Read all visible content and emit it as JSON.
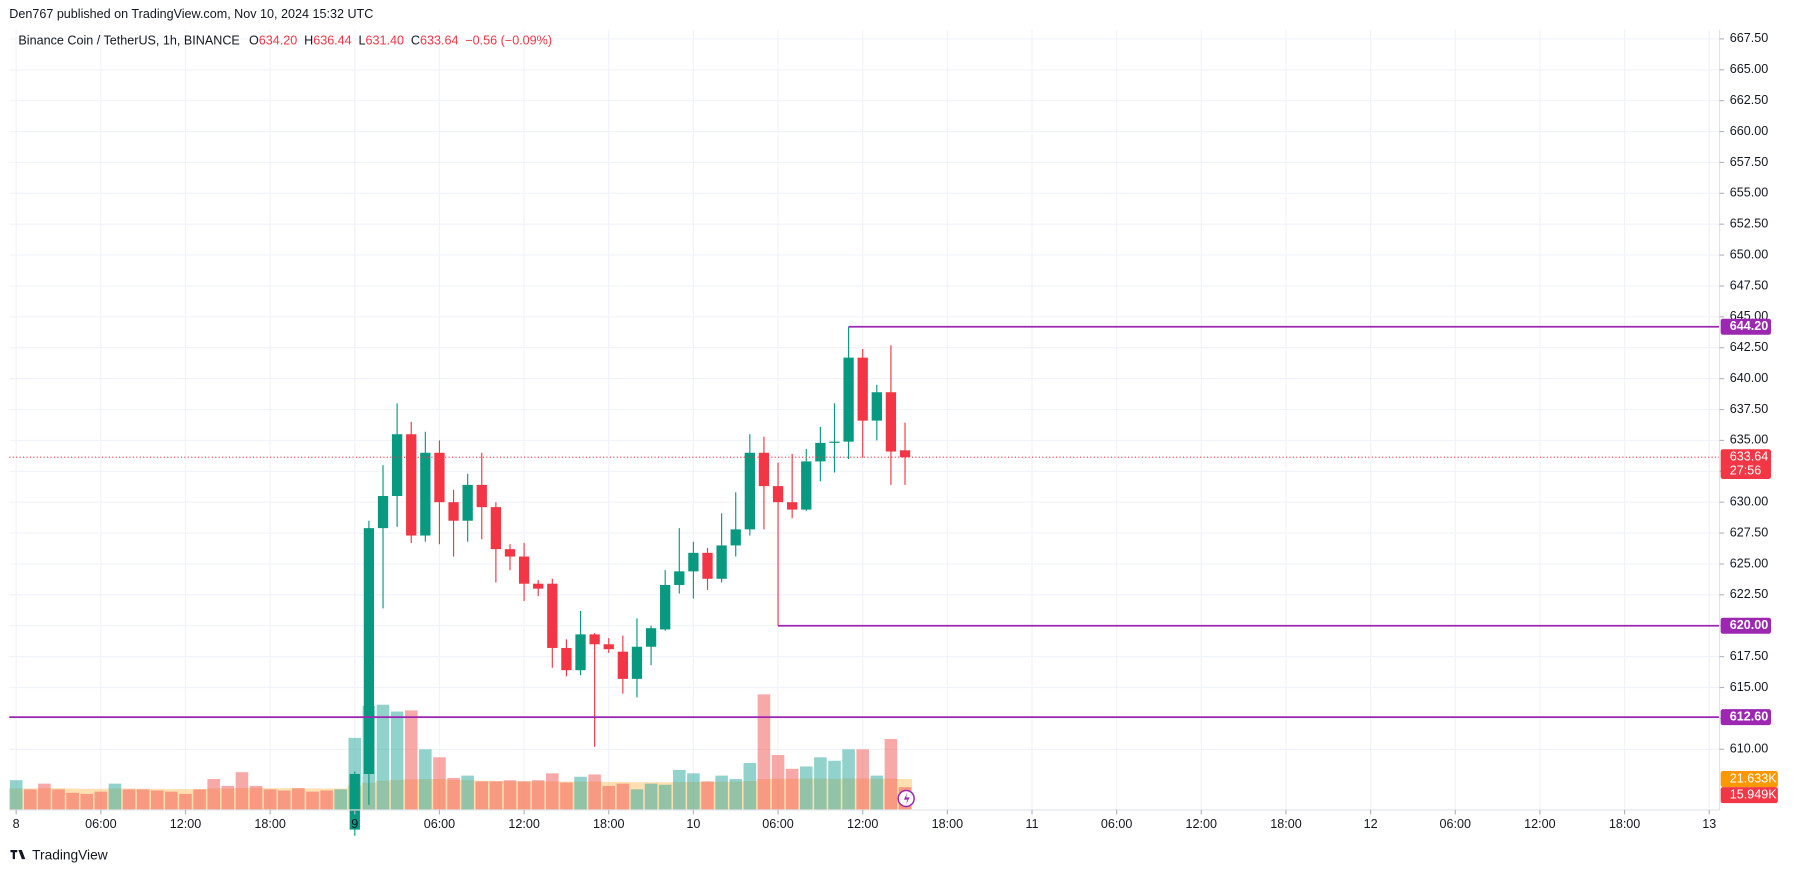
{
  "chart_data": {
    "type": "candlestick",
    "header": "Den767 published on TradingView.com, Nov 10, 2024 15:32 UTC",
    "title": "Binance Coin / TetherUS, 1h, BINANCE",
    "ohlc_legend": [
      {
        "label": "O",
        "value": "634.20"
      },
      {
        "label": "H",
        "value": "636.44"
      },
      {
        "label": "L",
        "value": "631.40"
      },
      {
        "label": "C",
        "value": "633.64"
      }
    ],
    "change": "−0.56 (−0.09%)",
    "footer": "TradingView",
    "up_color": "#089981",
    "down_color": "#f23645",
    "xlim": [
      -0.49,
      120.73
    ],
    "xticks": [
      {
        "value": 0,
        "label": "8"
      },
      {
        "value": 6,
        "label": "06:00"
      },
      {
        "value": 12,
        "label": "12:00"
      },
      {
        "value": 18,
        "label": "18:00"
      },
      {
        "value": 24,
        "label": "9"
      },
      {
        "value": 30,
        "label": "06:00"
      },
      {
        "value": 36,
        "label": "12:00"
      },
      {
        "value": 42,
        "label": "18:00"
      },
      {
        "value": 48,
        "label": "10"
      },
      {
        "value": 54,
        "label": "06:00"
      },
      {
        "value": 60,
        "label": "12:00"
      },
      {
        "value": 66,
        "label": "18:00"
      },
      {
        "value": 72,
        "label": "11"
      },
      {
        "value": 78,
        "label": "06:00"
      },
      {
        "value": 84,
        "label": "12:00"
      },
      {
        "value": 90,
        "label": "18:00"
      },
      {
        "value": 96,
        "label": "12"
      },
      {
        "value": 102,
        "label": "06:00"
      },
      {
        "value": 108,
        "label": "12:00"
      },
      {
        "value": 114,
        "label": "18:00"
      },
      {
        "value": 120,
        "label": "13"
      }
    ],
    "ylim": [
      605.09,
      668.24
    ],
    "yticks": [
      {
        "value": 610,
        "label": "610.00"
      },
      {
        "value": 612.5,
        "label": "612.50"
      },
      {
        "value": 615,
        "label": "615.00"
      },
      {
        "value": 617.5,
        "label": "617.50"
      },
      {
        "value": 620,
        "label": "620.00"
      },
      {
        "value": 622.5,
        "label": "622.50"
      },
      {
        "value": 625,
        "label": "625.00"
      },
      {
        "value": 627.5,
        "label": "627.50"
      },
      {
        "value": 630,
        "label": "630.00"
      },
      {
        "value": 632.5,
        "label": "632.50"
      },
      {
        "value": 635,
        "label": "635.00"
      },
      {
        "value": 637.5,
        "label": "637.50"
      },
      {
        "value": 640,
        "label": "640.00"
      },
      {
        "value": 642.5,
        "label": "642.50"
      },
      {
        "value": 645,
        "label": "645.00"
      },
      {
        "value": 647.5,
        "label": "647.50"
      },
      {
        "value": 650,
        "label": "650.00"
      },
      {
        "value": 652.5,
        "label": "652.50"
      },
      {
        "value": 655,
        "label": "655.00"
      },
      {
        "value": 657.5,
        "label": "657.50"
      },
      {
        "value": 660,
        "label": "660.00"
      },
      {
        "value": 662.5,
        "label": "662.50"
      },
      {
        "value": 665,
        "label": "665.00"
      },
      {
        "value": 667.5,
        "label": "667.50"
      }
    ],
    "grid": true,
    "candles": {
      "x": [
        24,
        25,
        26,
        27,
        28,
        29,
        30,
        31,
        32,
        33,
        34,
        35,
        36,
        37,
        38,
        39,
        40,
        41,
        42,
        43,
        44,
        45,
        46,
        47,
        48,
        49,
        50,
        51,
        52,
        53,
        54,
        55,
        56,
        57,
        58,
        59,
        60,
        61,
        62,
        63
      ],
      "open": [
        603.5,
        608,
        627.9,
        630.5,
        635.5,
        627.3,
        634,
        630,
        628.5,
        631.4,
        629.6,
        626.2,
        625.6,
        623.4,
        623.4,
        618.2,
        616.4,
        619.3,
        618.5,
        617.9,
        615.7,
        618.3,
        619.7,
        623.3,
        624.4,
        625.9,
        623.8,
        626.5,
        627.8,
        634,
        631.3,
        630,
        629.4,
        633.3,
        634.8,
        634.9,
        641.7,
        636.6,
        638.9,
        634.2
      ],
      "high": [
        608.2,
        628.5,
        633,
        638,
        636.5,
        635.7,
        635,
        631,
        632.3,
        634,
        630,
        626.6,
        626.7,
        623.7,
        623.8,
        618.9,
        621.2,
        619.4,
        619,
        619.2,
        620.6,
        620,
        624.5,
        627.9,
        626.8,
        626.3,
        629.1,
        630.8,
        635.5,
        635.3,
        633.2,
        633.9,
        634.3,
        636.1,
        638,
        644.2,
        642.4,
        639.5,
        642.7,
        636.44
      ],
      "low": [
        603,
        605.5,
        621.4,
        628,
        626.7,
        626.8,
        626.6,
        625.6,
        626.8,
        627,
        623.5,
        624.5,
        622,
        622.4,
        616.6,
        615.9,
        616,
        610.2,
        617.8,
        614.5,
        614.2,
        616.8,
        619.6,
        622.6,
        622.2,
        622.9,
        623.5,
        625.6,
        627.3,
        627.8,
        620,
        628.7,
        629.3,
        631.7,
        632.4,
        633.5,
        633.6,
        635,
        631.4,
        631.4
      ],
      "close": [
        608,
        627.9,
        630.5,
        635.5,
        627.3,
        634,
        630,
        628.5,
        631.4,
        629.6,
        626.2,
        625.6,
        623.4,
        623,
        618.2,
        616.4,
        619.3,
        618.5,
        618.1,
        615.7,
        618.3,
        619.8,
        623.3,
        624.4,
        625.9,
        623.8,
        626.5,
        627.8,
        634,
        631.3,
        630,
        629.4,
        633.3,
        634.8,
        634.9,
        641.7,
        636.6,
        638.9,
        634.1,
        633.64
      ]
    },
    "volume": {
      "x": [
        0,
        1,
        2,
        3,
        4,
        5,
        6,
        7,
        8,
        9,
        10,
        11,
        12,
        13,
        14,
        15,
        16,
        17,
        18,
        19,
        20,
        21,
        22,
        23,
        24,
        25,
        26,
        27,
        28,
        29,
        30,
        31,
        32,
        33,
        34,
        35,
        36,
        37,
        38,
        39,
        40,
        41,
        42,
        43,
        44,
        45,
        46,
        47,
        48,
        49,
        50,
        51,
        52,
        53,
        54,
        55,
        56,
        57,
        58,
        59,
        60,
        61,
        62,
        63
      ],
      "values": [
        20.8,
        14.4,
        18.4,
        14.4,
        12,
        11.2,
        12.8,
        18.4,
        14.4,
        14.4,
        13.6,
        12.8,
        11.2,
        14.4,
        21.6,
        16.8,
        26.4,
        16.8,
        14.4,
        13.6,
        15.2,
        12.8,
        13.6,
        14.4,
        50.4,
        72.8,
        73.6,
        68.8,
        69.6,
        42.4,
        36.8,
        22.4,
        24,
        20,
        20,
        20.8,
        20,
        20.8,
        25.6,
        19.2,
        23.2,
        24.8,
        16.8,
        18.4,
        14.4,
        18.4,
        17.6,
        28,
        25.6,
        20,
        24,
        21.6,
        32.8,
        80.8,
        38.4,
        28.8,
        30.4,
        36.8,
        34.4,
        42.4,
        42.4,
        24,
        49.6,
        15.949
      ],
      "colors": [
        "#26a69a",
        "#ef5350",
        "#ef5350",
        "#ef5350",
        "#ef5350",
        "#ef5350",
        "#ef5350",
        "#26a69a",
        "#ef5350",
        "#ef5350",
        "#ef5350",
        "#ef5350",
        "#ef5350",
        "#ef5350",
        "#ef5350",
        "#ef5350",
        "#ef5350",
        "#ef5350",
        "#ef5350",
        "#ef5350",
        "#ef5350",
        "#ef5350",
        "#ef5350",
        "#26a69a",
        "#26a69a",
        "#26a69a",
        "#26a69a",
        "#26a69a",
        "#ef5350",
        "#26a69a",
        "#ef5350",
        "#ef5350",
        "#26a69a",
        "#ef5350",
        "#ef5350",
        "#ef5350",
        "#ef5350",
        "#ef5350",
        "#ef5350",
        "#ef5350",
        "#26a69a",
        "#ef5350",
        "#ef5350",
        "#ef5350",
        "#26a69a",
        "#26a69a",
        "#26a69a",
        "#26a69a",
        "#26a69a",
        "#ef5350",
        "#26a69a",
        "#26a69a",
        "#26a69a",
        "#ef5350",
        "#ef5350",
        "#ef5350",
        "#26a69a",
        "#26a69a",
        "#26a69a",
        "#26a69a",
        "#ef5350",
        "#26a69a",
        "#ef5350",
        "#ef5350"
      ],
      "last_label": "15.949K"
    },
    "volume_ma": {
      "color": "#ff9800",
      "values": [
        15,
        15,
        15.2,
        15.2,
        15,
        14.8,
        14.8,
        15,
        15,
        14.8,
        14.8,
        14.6,
        14.6,
        14.6,
        15,
        15,
        15.4,
        15.4,
        15.2,
        15.2,
        15.2,
        15,
        15,
        15,
        17,
        19,
        20.4,
        21,
        21.4,
        21.6,
        21.6,
        21,
        20.8,
        20.4,
        20.2,
        20,
        20,
        20,
        20,
        19.8,
        19.8,
        19.8,
        19.6,
        19.6,
        19.4,
        19.4,
        19.4,
        19.6,
        19.6,
        19.6,
        19.8,
        19.8,
        20.2,
        21.6,
        21.8,
        21.8,
        22,
        22,
        21.8,
        22,
        22,
        21.8,
        22,
        21.633
      ],
      "last_label": "21.633K"
    },
    "levels": [
      {
        "value": 644.2,
        "label": "644.20",
        "start_x": 59,
        "color": "#9c27b0"
      },
      {
        "value": 620,
        "label": "620.00",
        "start_x": 54,
        "color": "#9c27b0"
      },
      {
        "value": 612.6,
        "label": "612.60",
        "start_x": -0.49,
        "color": "#9c27b0"
      }
    ],
    "last_price": {
      "value": 633.64,
      "label": "633.64",
      "countdown": "27:56",
      "color": "#f23645"
    }
  }
}
